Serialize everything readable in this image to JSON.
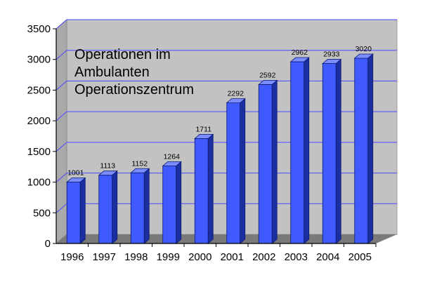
{
  "chart_data": {
    "type": "bar",
    "title_lines": [
      "Operationen im",
      "Ambulanten",
      "Operationszentrum"
    ],
    "categories": [
      "1996",
      "1997",
      "1998",
      "1999",
      "2000",
      "2001",
      "2002",
      "2003",
      "2004",
      "2005"
    ],
    "values": [
      1001,
      1113,
      1152,
      1264,
      1711,
      2292,
      2592,
      2962,
      2933,
      3020
    ],
    "data_labels": [
      "1001",
      "1113",
      "1152",
      "1264",
      "1711",
      "2292",
      "2592",
      "2962",
      "2933",
      "3020"
    ],
    "yticks": [
      "0",
      "500",
      "1000",
      "1500",
      "2000",
      "2500",
      "3000",
      "3500"
    ],
    "ytick_values": [
      0,
      500,
      1000,
      1500,
      2000,
      2500,
      3000,
      3500
    ],
    "ylim": [
      0,
      3500
    ],
    "grid": true,
    "legend": "none",
    "colors": {
      "bar_front": "#3f5bff",
      "bar_side": "#1c2fa0",
      "bar_top": "#7b8cff",
      "wall_back": "#c2c2c2",
      "wall_left": "#a9a9a9",
      "floor": "#7a7a7a",
      "gridline": "#4a4aff"
    }
  }
}
